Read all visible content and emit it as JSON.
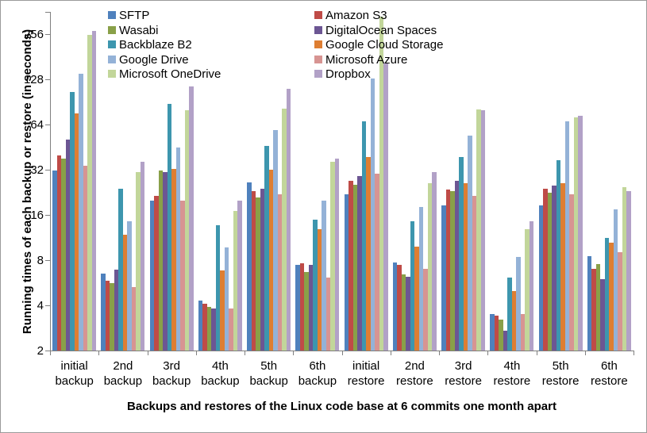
{
  "chart_data": {
    "type": "bar",
    "title": "",
    "xlabel": "Backups and restores of the Linux code base at 6 commits one month apart",
    "ylabel": "Running times of each backup or restore (in seconds)",
    "y_scale": "log2",
    "y_ticks": [
      2,
      4,
      8,
      16,
      32,
      64,
      128,
      256
    ],
    "ylim": [
      2,
      360
    ],
    "grid": false,
    "legend_position": "top-two-columns",
    "categories": [
      "initial backup",
      "2nd backup",
      "3rd backup",
      "4th backup",
      "5th backup",
      "6th backup",
      "initial restore",
      "2nd restore",
      "3rd restore",
      "4th restore",
      "5th restore",
      "6th restore"
    ],
    "series": [
      {
        "name": "SFTP",
        "color": "#4F81BD",
        "values": [
          31.5,
          6.5,
          20,
          4.3,
          26.5,
          7.4,
          22,
          7.7,
          18.5,
          3.5,
          18.5,
          8.5
        ]
      },
      {
        "name": "Amazon S3",
        "color": "#BF4B47",
        "values": [
          40,
          5.8,
          21.5,
          4.1,
          23,
          7.6,
          27,
          7.4,
          23.5,
          3.4,
          24,
          7
        ]
      },
      {
        "name": "Wasabi",
        "color": "#89A048",
        "values": [
          38,
          5.6,
          31.5,
          3.9,
          21,
          6.7,
          25.5,
          6.4,
          23,
          3.2,
          22.5,
          7.5
        ]
      },
      {
        "name": "DigitalOcean Spaces",
        "color": "#6C5693",
        "values": [
          51,
          6.9,
          31,
          3.8,
          24,
          7.4,
          29,
          6.2,
          27,
          2.7,
          25,
          6
        ]
      },
      {
        "name": "Backblaze B2",
        "color": "#3D96AE",
        "values": [
          106,
          24,
          88,
          13.7,
          46,
          14.8,
          67,
          14.5,
          39,
          6.1,
          37,
          11.2
        ]
      },
      {
        "name": "Google Cloud Storage",
        "color": "#DE7E32",
        "values": [
          76,
          11.8,
          32.5,
          6.8,
          32,
          12.8,
          39,
          9.8,
          26,
          5,
          26,
          10.4
        ]
      },
      {
        "name": "Google Drive",
        "color": "#94B2D7",
        "values": [
          140,
          14.6,
          45,
          9.7,
          59,
          19.8,
          130,
          18,
          54,
          8.4,
          67,
          17.4
        ]
      },
      {
        "name": "Microsoft Azure",
        "color": "#D79492",
        "values": [
          34,
          5.3,
          20,
          3.8,
          22,
          6.1,
          30,
          7,
          21.5,
          3.5,
          22,
          9
        ]
      },
      {
        "name": "Microsoft OneDrive",
        "color": "#C2D69A",
        "values": [
          254,
          31,
          80,
          17,
          82,
          36,
          335,
          26,
          81,
          12.8,
          71,
          24.5
        ]
      },
      {
        "name": "Dropbox",
        "color": "#B2A1C7",
        "values": [
          270,
          36,
          115,
          19.8,
          110,
          38,
          165,
          31,
          80,
          14.5,
          73,
          23
        ]
      }
    ],
    "legend_column_order": [
      [
        0,
        2,
        4,
        6,
        8
      ],
      [
        1,
        3,
        5,
        7,
        9
      ]
    ]
  }
}
